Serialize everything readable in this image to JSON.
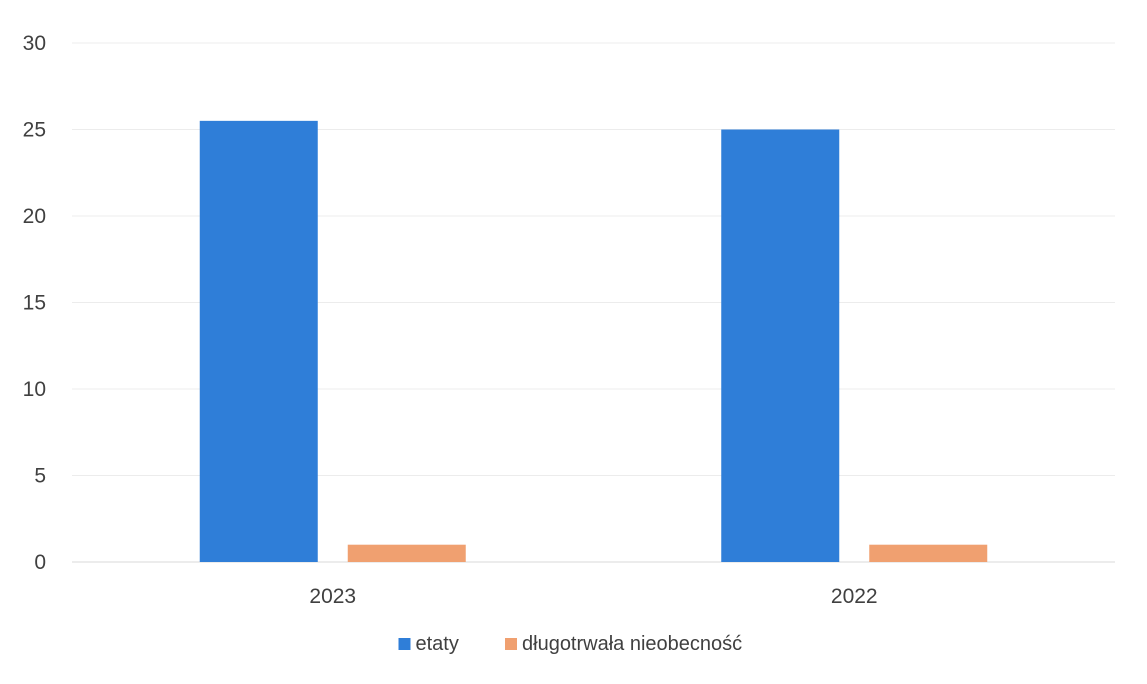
{
  "chart_data": {
    "type": "bar",
    "categories": [
      "2023",
      "2022"
    ],
    "series": [
      {
        "name": "etaty",
        "values": [
          25.5,
          25.0
        ],
        "color": "#2f7ed8"
      },
      {
        "name": "długotrwała nieobecność",
        "values": [
          1.0,
          1.0
        ],
        "color": "#f0a070"
      }
    ],
    "ylim": [
      0,
      30
    ],
    "yticks": [
      "0",
      "5",
      "10",
      "15",
      "20",
      "25",
      "30"
    ],
    "grid": true,
    "legend_position": "bottom-center"
  }
}
